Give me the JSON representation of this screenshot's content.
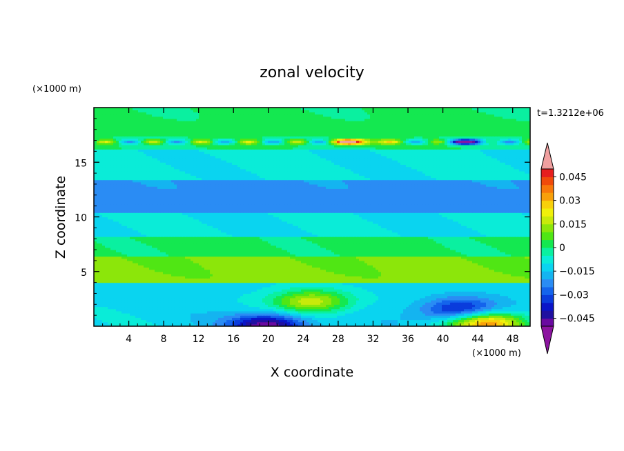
{
  "chart_data": {
    "type": "heatmap",
    "title": "zonal velocity",
    "xlabel": "X coordinate",
    "ylabel": "Z coordinate",
    "x_unit": "(×1000 m)",
    "y_unit": "(×1000 m)",
    "time_label": "t=1.3212e+06",
    "xlim": [
      0,
      50
    ],
    "ylim": [
      0,
      20
    ],
    "x_ticks": [
      "4",
      "8",
      "12",
      "16",
      "20",
      "24",
      "28",
      "32",
      "36",
      "40",
      "44",
      "48"
    ],
    "y_ticks": [
      "5",
      "10",
      "15"
    ],
    "colorbar": {
      "tick_labels": [
        "0.045",
        "0.03",
        "0.015",
        "0",
        "−0.015",
        "−0.03",
        "−0.045"
      ],
      "levels": [
        -0.05,
        -0.045,
        -0.04,
        -0.035,
        -0.03,
        -0.025,
        -0.02,
        -0.015,
        -0.01,
        -0.005,
        0,
        0.005,
        0.01,
        0.015,
        0.02,
        0.025,
        0.03,
        0.035,
        0.04,
        0.045,
        0.05
      ],
      "colors": [
        "#6a0aa0",
        "#2010a0",
        "#0a14c8",
        "#0a3cdc",
        "#1464ec",
        "#2a8cf4",
        "#14b4f0",
        "#0ad4f0",
        "#0aecd8",
        "#0af0a0",
        "#14e850",
        "#50e614",
        "#8ce60a",
        "#c8ea0a",
        "#f0f00a",
        "#f8d00a",
        "#f8a00a",
        "#f8780a",
        "#f04a0a",
        "#e61e1e"
      ],
      "over_color": "#f0a0a0",
      "under_color": "#8c14a0"
    },
    "field_bands": [
      {
        "z_range": [
          17.5,
          20
        ],
        "value": 0.001
      },
      {
        "z_range": [
          16.3,
          17.5
        ],
        "value": 0.0,
        "note": "strong alternating jets"
      },
      {
        "z_range": [
          13.5,
          16.3
        ],
        "value": -0.009
      },
      {
        "z_range": [
          10.5,
          13.5
        ],
        "value": -0.022
      },
      {
        "z_range": [
          8.2,
          10.5
        ],
        "value": -0.01
      },
      {
        "z_range": [
          6.5,
          8.2
        ],
        "value": 0.002
      },
      {
        "z_range": [
          4.0,
          6.5
        ],
        "value": 0.011
      },
      {
        "z_range": [
          0,
          4.0
        ],
        "value": -0.012
      }
    ],
    "features": [
      {
        "x": 20,
        "z": 0.1,
        "value": -0.05
      },
      {
        "x": 42,
        "z": 1.5,
        "value": -0.042
      },
      {
        "x": 25,
        "z": 2.3,
        "value": 0.019
      },
      {
        "x": 45,
        "z": 0.3,
        "value": 0.035
      },
      {
        "x": 30,
        "z": 16.9,
        "value": 0.05
      },
      {
        "x": 43,
        "z": 16.9,
        "value": -0.045
      }
    ]
  }
}
